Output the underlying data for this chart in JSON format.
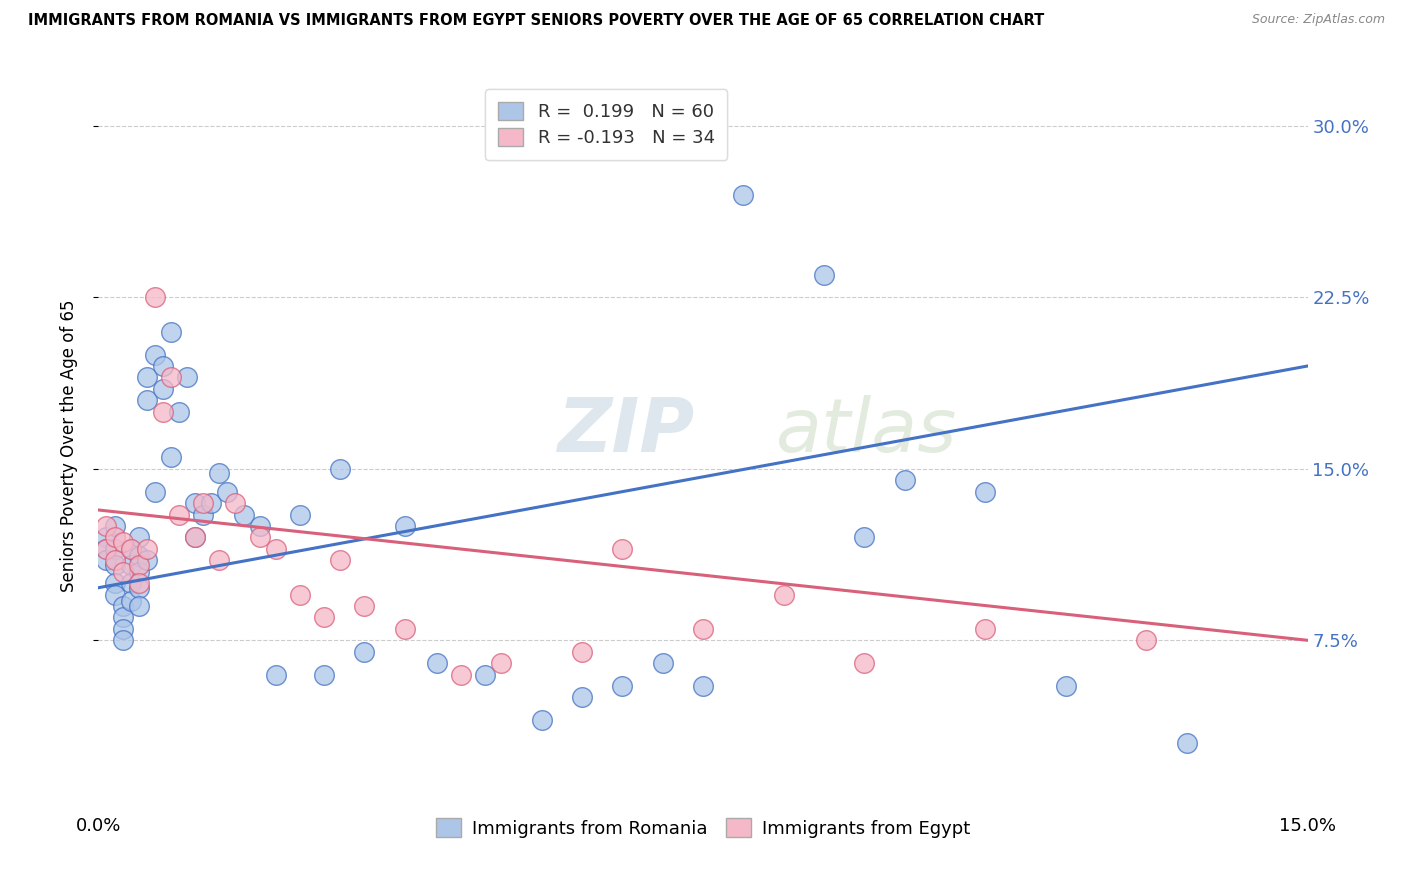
{
  "title": "IMMIGRANTS FROM ROMANIA VS IMMIGRANTS FROM EGYPT SENIORS POVERTY OVER THE AGE OF 65 CORRELATION CHART",
  "source": "Source: ZipAtlas.com",
  "ylabel": "Seniors Poverty Over the Age of 65",
  "x_min": 0.0,
  "x_max": 0.15,
  "y_min": 0.0,
  "y_max": 0.32,
  "legend_labels": [
    "Immigrants from Romania",
    "Immigrants from Egypt"
  ],
  "legend_R_romania": "0.199",
  "legend_N_romania": "60",
  "legend_R_egypt": "-0.193",
  "legend_N_egypt": "34",
  "color_romania": "#adc6e8",
  "color_egypt": "#f5b8c8",
  "line_color_romania": "#4472c4",
  "line_color_egypt": "#d9607a",
  "watermark_zip": "ZIP",
  "watermark_atlas": "atlas",
  "romania_x": [
    0.001,
    0.001,
    0.001,
    0.002,
    0.002,
    0.002,
    0.002,
    0.002,
    0.003,
    0.003,
    0.003,
    0.003,
    0.004,
    0.004,
    0.004,
    0.004,
    0.005,
    0.005,
    0.005,
    0.005,
    0.005,
    0.006,
    0.006,
    0.006,
    0.007,
    0.007,
    0.008,
    0.008,
    0.009,
    0.009,
    0.01,
    0.011,
    0.012,
    0.012,
    0.013,
    0.014,
    0.015,
    0.016,
    0.018,
    0.02,
    0.022,
    0.025,
    0.028,
    0.03,
    0.033,
    0.038,
    0.042,
    0.048,
    0.055,
    0.06,
    0.065,
    0.07,
    0.075,
    0.08,
    0.09,
    0.095,
    0.1,
    0.11,
    0.12,
    0.135
  ],
  "romania_y": [
    0.12,
    0.115,
    0.11,
    0.125,
    0.115,
    0.108,
    0.1,
    0.095,
    0.09,
    0.085,
    0.08,
    0.075,
    0.115,
    0.108,
    0.1,
    0.092,
    0.12,
    0.112,
    0.105,
    0.098,
    0.09,
    0.19,
    0.18,
    0.11,
    0.2,
    0.14,
    0.195,
    0.185,
    0.21,
    0.155,
    0.175,
    0.19,
    0.135,
    0.12,
    0.13,
    0.135,
    0.148,
    0.14,
    0.13,
    0.125,
    0.06,
    0.13,
    0.06,
    0.15,
    0.07,
    0.125,
    0.065,
    0.06,
    0.04,
    0.05,
    0.055,
    0.065,
    0.055,
    0.27,
    0.235,
    0.12,
    0.145,
    0.14,
    0.055,
    0.03
  ],
  "egypt_x": [
    0.001,
    0.001,
    0.002,
    0.002,
    0.003,
    0.003,
    0.004,
    0.005,
    0.005,
    0.006,
    0.007,
    0.008,
    0.009,
    0.01,
    0.012,
    0.013,
    0.015,
    0.017,
    0.02,
    0.022,
    0.025,
    0.028,
    0.03,
    0.033,
    0.038,
    0.045,
    0.05,
    0.06,
    0.065,
    0.075,
    0.085,
    0.095,
    0.11,
    0.13
  ],
  "egypt_y": [
    0.125,
    0.115,
    0.12,
    0.11,
    0.118,
    0.105,
    0.115,
    0.108,
    0.1,
    0.115,
    0.225,
    0.175,
    0.19,
    0.13,
    0.12,
    0.135,
    0.11,
    0.135,
    0.12,
    0.115,
    0.095,
    0.085,
    0.11,
    0.09,
    0.08,
    0.06,
    0.065,
    0.07,
    0.115,
    0.08,
    0.095,
    0.065,
    0.08,
    0.075
  ],
  "ro_line_x0": 0.0,
  "ro_line_y0": 0.098,
  "ro_line_x1": 0.15,
  "ro_line_y1": 0.195,
  "eg_line_x0": 0.0,
  "eg_line_y0": 0.132,
  "eg_line_x1": 0.15,
  "eg_line_y1": 0.075
}
